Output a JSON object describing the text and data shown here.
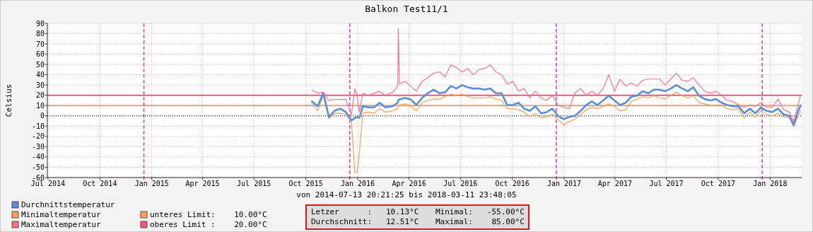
{
  "chart_data": {
    "type": "line",
    "title": "Balkon Test11/1",
    "ylabel": "Celsius",
    "xlim": [
      "2014-07-13T20:21",
      "2018-03-11T23:48"
    ],
    "xticks": [
      {
        "value": "2014-07-15",
        "label": "Jul 2014"
      },
      {
        "value": "2014-10-15",
        "label": "Oct 2014"
      },
      {
        "value": "2015-01-15",
        "label": "Jan 2015"
      },
      {
        "value": "2015-04-15",
        "label": "Apr 2015"
      },
      {
        "value": "2015-07-15",
        "label": "Jul 2015"
      },
      {
        "value": "2015-10-15",
        "label": "Oct 2015"
      },
      {
        "value": "2016-01-15",
        "label": "Jan 2016"
      },
      {
        "value": "2016-04-15",
        "label": "Apr 2016"
      },
      {
        "value": "2016-07-15",
        "label": "Jul 2016"
      },
      {
        "value": "2016-10-15",
        "label": "Oct 2016"
      },
      {
        "value": "2017-01-15",
        "label": "Jan 2017"
      },
      {
        "value": "2017-04-15",
        "label": "Apr 2017"
      },
      {
        "value": "2017-07-15",
        "label": "Jul 2017"
      },
      {
        "value": "2017-10-15",
        "label": "Oct 2017"
      },
      {
        "value": "2018-01-15",
        "label": "Jan 2018"
      }
    ],
    "ylim": [
      -60,
      90
    ],
    "yticks": [
      -60,
      -50,
      -40,
      -30,
      -20,
      -10,
      0,
      10,
      20,
      30,
      40,
      50,
      60,
      70,
      80,
      90
    ],
    "grid": true,
    "legend": "bottom",
    "x": [
      "2015-10-26",
      "2015-11-05",
      "2015-11-15",
      "2015-11-25",
      "2015-12-05",
      "2015-12-15",
      "2015-12-25",
      "2016-01-04",
      "2016-01-10",
      "2016-01-14",
      "2016-01-18",
      "2016-01-24",
      "2016-02-03",
      "2016-02-13",
      "2016-02-23",
      "2016-03-04",
      "2016-03-17",
      "2016-03-26",
      "2016-03-27",
      "2016-03-29",
      "2016-04-08",
      "2016-04-18",
      "2016-04-28",
      "2016-05-08",
      "2016-05-18",
      "2016-05-29",
      "2016-06-08",
      "2016-06-18",
      "2016-06-28",
      "2016-07-08",
      "2016-07-18",
      "2016-07-28",
      "2016-08-07",
      "2016-08-17",
      "2016-08-27",
      "2016-09-06",
      "2016-09-16",
      "2016-09-26",
      "2016-10-06",
      "2016-10-16",
      "2016-10-26",
      "2016-11-05",
      "2016-11-15",
      "2016-11-25",
      "2016-12-05",
      "2016-12-15",
      "2016-12-25",
      "2017-01-04",
      "2017-01-14",
      "2017-01-24",
      "2017-02-03",
      "2017-02-13",
      "2017-02-23",
      "2017-03-05",
      "2017-03-15",
      "2017-03-25",
      "2017-04-04",
      "2017-04-14",
      "2017-04-24",
      "2017-05-04",
      "2017-05-14",
      "2017-05-24",
      "2017-06-03",
      "2017-06-13",
      "2017-06-23",
      "2017-07-03",
      "2017-07-13",
      "2017-07-23",
      "2017-08-02",
      "2017-08-12",
      "2017-08-22",
      "2017-09-01",
      "2017-09-11",
      "2017-09-21",
      "2017-10-01",
      "2017-10-11",
      "2017-10-21",
      "2017-10-31",
      "2017-11-10",
      "2017-11-20",
      "2017-11-30",
      "2017-12-10",
      "2017-12-20",
      "2017-12-30",
      "2018-01-09",
      "2018-01-19",
      "2018-01-29",
      "2018-02-08",
      "2018-02-18",
      "2018-02-26",
      "2018-03-05",
      "2018-03-10"
    ],
    "series": [
      {
        "name": "Durchnittstemperatur",
        "color": "#5b8ed8",
        "values": [
          14,
          9.4,
          22,
          -1,
          5,
          7,
          3.7,
          -4.4,
          -2,
          -1,
          -2,
          9.4,
          8.3,
          8.3,
          12.8,
          8.3,
          9.4,
          12.8,
          15,
          16,
          17.4,
          16,
          10.5,
          17.4,
          22,
          25.5,
          22,
          23,
          29,
          26.6,
          30,
          27.8,
          26.6,
          26.6,
          25.5,
          26.6,
          22,
          22,
          10.5,
          10.5,
          12.8,
          7,
          4.8,
          9.4,
          2.5,
          3.7,
          7,
          0,
          -3.2,
          -1,
          0,
          4.8,
          10.5,
          14,
          10.5,
          15,
          19.7,
          15,
          10.5,
          12.8,
          18.6,
          19.7,
          24,
          22,
          25.5,
          25.5,
          24,
          26.6,
          30,
          26.6,
          24,
          27.8,
          19.7,
          16.3,
          15,
          16.3,
          12.8,
          10.5,
          9.4,
          9.4,
          2.5,
          7,
          2.5,
          8.3,
          4.8,
          3.7,
          7,
          1.4,
          0,
          -9,
          3.7,
          10.1
        ]
      },
      {
        "name": "Minimaltemperatur",
        "color": "#ff9d55",
        "values": [
          11.7,
          5,
          20,
          -3,
          2.5,
          2.5,
          1.4,
          -6.7,
          -55,
          -55,
          -36,
          2.5,
          3.7,
          2.5,
          7,
          3.7,
          4.8,
          7,
          9.4,
          10.5,
          11.7,
          9.4,
          4.8,
          12.8,
          15,
          16.3,
          16.3,
          18.6,
          21,
          19.7,
          21,
          18.6,
          17.4,
          17.4,
          17.4,
          18.6,
          16.3,
          15,
          7,
          7,
          6,
          3.7,
          -1,
          2.5,
          -2,
          -1,
          1.4,
          -3.2,
          -9,
          -5.5,
          -3.2,
          1.4,
          6,
          8.3,
          7,
          9.4,
          11.7,
          9.4,
          4.8,
          6,
          14,
          16.3,
          18.6,
          17.4,
          19.7,
          17.4,
          16.3,
          19.7,
          23,
          19.7,
          17.4,
          19.7,
          12.8,
          11.7,
          10.5,
          10.5,
          10.5,
          7,
          6,
          7,
          -2,
          3.7,
          -1,
          4.8,
          1.4,
          0,
          2.5,
          -1,
          -2,
          -10.5,
          -1,
          4.8
        ]
      },
      {
        "name": "Maximaltemperatur",
        "color": "#ff7088",
        "values": [
          25,
          22,
          23,
          15,
          16,
          16,
          16,
          1.4,
          26.6,
          20,
          3.7,
          22,
          20,
          22,
          24,
          20,
          23,
          29,
          85,
          31,
          33.5,
          29,
          24,
          33.5,
          37,
          41.5,
          42.7,
          38,
          49.5,
          47,
          42.7,
          46,
          40,
          45,
          46,
          49.5,
          42.7,
          40,
          31,
          33.5,
          24,
          26.6,
          17.4,
          24,
          17.4,
          15,
          20,
          10.5,
          8.3,
          7,
          22,
          26.6,
          20,
          24,
          20,
          26.6,
          40,
          24,
          35.8,
          29,
          32,
          29,
          34.6,
          35.8,
          35.8,
          35.8,
          30,
          35.8,
          41.5,
          34.6,
          33.5,
          37,
          30,
          24,
          22,
          24,
          20,
          15,
          14,
          10.5,
          8.3,
          10.5,
          9.4,
          12.8,
          8.3,
          8.3,
          16.3,
          6,
          3.7,
          -5.5,
          9.4,
          20
        ]
      }
    ],
    "ref_lines": [
      {
        "axis": "y",
        "value": 10,
        "label": "unteres Limit:    10.00°C",
        "color": "#ffa060"
      },
      {
        "axis": "y",
        "value": 20,
        "label": "oberes Limit :    20.00°C",
        "color": "#f05a78"
      },
      {
        "axis": "y",
        "value": 0,
        "color": "#000000",
        "line_style": "dotted"
      },
      {
        "axis": "x",
        "value": "2015-01-01",
        "color": "#d048d0",
        "line_style": "dashed"
      },
      {
        "axis": "x",
        "value": "2016-01-01",
        "color": "#d048d0",
        "line_style": "dashed"
      },
      {
        "axis": "x",
        "value": "2017-01-01",
        "color": "#d048d0",
        "line_style": "dashed"
      },
      {
        "axis": "x",
        "value": "2018-01-01",
        "color": "#d048d0",
        "line_style": "dashed"
      }
    ],
    "annotations": [
      "von 2014-07-13 20:21:25 bis 2018-03-11 23:48:05",
      "Letzer      :   10.13°C",
      "Minimal:   -55.00°C",
      "Durchschnitt:   12.51°C",
      "Maximal:    85.00°C"
    ]
  }
}
